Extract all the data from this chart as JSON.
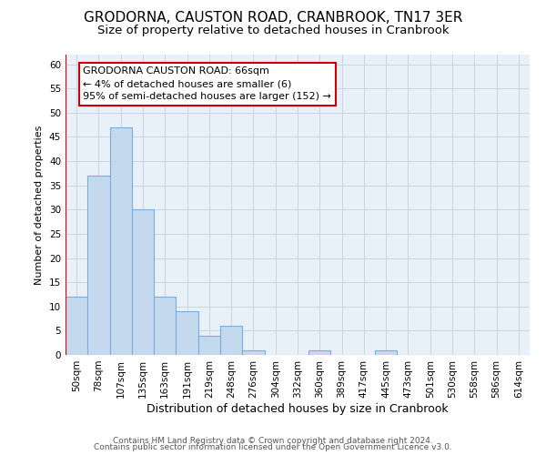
{
  "title": "GRODORNA, CAUSTON ROAD, CRANBROOK, TN17 3ER",
  "subtitle": "Size of property relative to detached houses in Cranbrook",
  "xlabel": "Distribution of detached houses by size in Cranbrook",
  "ylabel": "Number of detached properties",
  "categories": [
    "50sqm",
    "78sqm",
    "107sqm",
    "135sqm",
    "163sqm",
    "191sqm",
    "219sqm",
    "248sqm",
    "276sqm",
    "304sqm",
    "332sqm",
    "360sqm",
    "389sqm",
    "417sqm",
    "445sqm",
    "473sqm",
    "501sqm",
    "530sqm",
    "558sqm",
    "586sqm",
    "614sqm"
  ],
  "values": [
    12,
    37,
    47,
    30,
    12,
    9,
    4,
    6,
    1,
    0,
    0,
    1,
    0,
    0,
    1,
    0,
    0,
    0,
    0,
    0,
    0
  ],
  "bar_color": "#c5d9ee",
  "bar_edge_color": "#7aaed4",
  "vline_color": "#cc0000",
  "annotation_text": "GRODORNA CAUSTON ROAD: 66sqm\n← 4% of detached houses are smaller (6)\n95% of semi-detached houses are larger (152) →",
  "annotation_box_color": "#ffffff",
  "annotation_box_edgecolor": "#cc0000",
  "ylim": [
    0,
    62
  ],
  "yticks": [
    0,
    5,
    10,
    15,
    20,
    25,
    30,
    35,
    40,
    45,
    50,
    55,
    60
  ],
  "background_color": "#e8f0f8",
  "grid_color": "#c8d4e8",
  "footer_line1": "Contains HM Land Registry data © Crown copyright and database right 2024.",
  "footer_line2": "Contains public sector information licensed under the Open Government Licence v3.0.",
  "title_fontsize": 11,
  "subtitle_fontsize": 9.5,
  "annotation_fontsize": 8,
  "xlabel_fontsize": 9,
  "ylabel_fontsize": 8,
  "tick_fontsize": 7.5,
  "footer_fontsize": 6.5
}
